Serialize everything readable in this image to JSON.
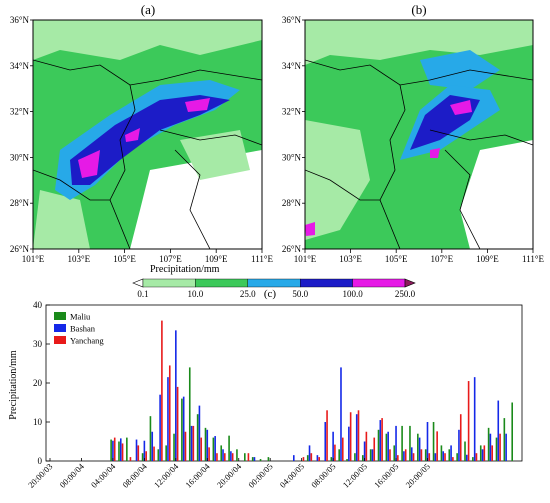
{
  "panels": {
    "a": {
      "label": "(a)"
    },
    "b": {
      "label": "(b)"
    },
    "c": {
      "label": "(c)"
    },
    "lat_ticks": [
      "36°N",
      "34°N",
      "32°N",
      "30°N",
      "28°N",
      "26°N"
    ],
    "lon_ticks": [
      "101°E",
      "103°E",
      "105°E",
      "107°E",
      "109°E",
      "111°E"
    ]
  },
  "colorbar": {
    "title": "Precipitation/mm",
    "levels": [
      "0.1",
      "10.0",
      "25.0",
      "50.0",
      "100.0",
      "250.0"
    ],
    "colors": [
      "#ffffff",
      "#a6eaa6",
      "#3cc95a",
      "#27a9e8",
      "#1c1cc7",
      "#e61ae6",
      "#8b1a5c"
    ]
  },
  "chart_data": {
    "type": "bar",
    "ylabel": "Precipitation/mm",
    "xlabel": "",
    "ylim": [
      0,
      40
    ],
    "yticks": [
      0,
      10,
      20,
      30,
      40
    ],
    "grid": false,
    "legend_position": "top-left",
    "x_tick_labels": [
      "20:00/03",
      "00:00/04",
      "04:00/04",
      "08:00/04",
      "12:00/04",
      "16:00/04",
      "20:00/04",
      "00:00/05",
      "04:00/05",
      "08:00/05",
      "12:00/05",
      "16:00/05",
      "20:00/05"
    ],
    "x_tick_hours": [
      0,
      4,
      8,
      12,
      16,
      20,
      24,
      28,
      32,
      36,
      40,
      44,
      48
    ],
    "series": [
      {
        "name": "Maliu",
        "color": "#1a8a1a",
        "values": [
          0,
          0,
          0,
          0,
          0,
          0,
          0,
          0,
          0,
          0,
          0,
          0,
          0,
          0,
          0,
          0,
          0,
          0,
          0,
          0,
          0,
          0,
          0,
          0,
          0,
          0,
          0,
          5.5,
          5,
          6,
          0,
          0,
          0,
          0,
          2,
          11.5,
          0,
          0,
          0,
          0,
          0,
          0,
          0,
          0,
          0,
          0,
          3,
          4,
          0,
          0,
          0,
          0,
          0,
          0,
          0,
          0,
          0,
          0,
          0,
          0,
          0,
          0,
          0,
          0,
          0,
          0,
          0,
          0,
          0,
          0,
          0,
          0,
          0,
          0,
          0,
          0,
          0,
          0,
          0,
          0,
          0,
          0,
          0,
          0,
          0,
          0,
          0,
          0,
          0,
          0,
          0,
          0,
          0,
          0,
          0,
          0,
          5,
          2,
          2,
          9,
          11,
          0,
          0,
          0,
          0,
          0,
          0,
          0,
          0,
          0,
          0,
          0,
          0,
          0,
          0,
          0,
          0,
          0,
          0,
          0,
          0,
          0,
          0,
          0,
          0,
          0,
          0,
          0,
          0,
          0,
          0,
          0,
          0,
          0,
          0,
          0,
          0,
          0,
          0,
          0,
          0,
          0,
          0,
          0,
          0,
          0,
          0,
          0,
          0,
          0,
          0,
          0,
          0,
          0,
          0,
          0,
          0,
          0,
          0,
          0,
          0,
          0,
          0,
          0,
          0,
          0,
          0,
          0,
          0,
          0,
          0,
          0,
          0,
          0,
          0,
          0,
          0,
          0,
          0,
          0,
          0,
          0,
          0,
          0,
          0,
          0,
          0,
          0,
          0,
          0,
          0,
          0,
          0,
          0,
          0,
          0,
          0,
          0,
          0,
          0,
          0,
          0,
          0,
          0,
          0,
          0
        ]
      }
    ],
    "bar_series": [
      {
        "name": "Maliu",
        "color": "#1a8a1a",
        "values": [
          0,
          0,
          0,
          0,
          0,
          0,
          0,
          0,
          5.5,
          5,
          6,
          0,
          2,
          11.5,
          3,
          4,
          7,
          16,
          24,
          12,
          8.5,
          6,
          4,
          6.5,
          3,
          2,
          1,
          0.5,
          1,
          0,
          0,
          0,
          0,
          1.5,
          0,
          0,
          1,
          3,
          0.5,
          2,
          1.5,
          3,
          8,
          7,
          4,
          9,
          9,
          7,
          3,
          10,
          4,
          3,
          2,
          5,
          1,
          4,
          8.5,
          6,
          11,
          15
        ]
      },
      {
        "name": "Bashan",
        "color": "#1428e8",
        "values": [
          0,
          0,
          0,
          0,
          0,
          0,
          0,
          0,
          5.2,
          5.8,
          0,
          5.5,
          5.2,
          7.5,
          17,
          21.5,
          33.5,
          16.5,
          9,
          14.2,
          8,
          6.4,
          3,
          2.5,
          0,
          0,
          1,
          0,
          0,
          0,
          0,
          1.5,
          0,
          4,
          1.5,
          10,
          7.5,
          24,
          8.8,
          12,
          5,
          3,
          10.5,
          7.5,
          9,
          2.5,
          3.5,
          6,
          10,
          2,
          2.5,
          4,
          8,
          1.6,
          21.5,
          3,
          7,
          15.5,
          7,
          0
        ]
      },
      {
        "name": "Yanchang",
        "color": "#e81a1a",
        "values": [
          0,
          0,
          0,
          0,
          0,
          0,
          0,
          0,
          6,
          4.5,
          1,
          4,
          2.5,
          3.7,
          36,
          24.5,
          19,
          7.5,
          9,
          6,
          3.5,
          2,
          2,
          2,
          0,
          2,
          0,
          0,
          0,
          0,
          0,
          0,
          1,
          2,
          1,
          13,
          4.2,
          6,
          12.5,
          13,
          7.5,
          6,
          11,
          3,
          1.5,
          3,
          2,
          3,
          2,
          7.6,
          2,
          1,
          12,
          20.5,
          2,
          4,
          4,
          7,
          0,
          0
        ]
      }
    ],
    "bar_hours": [
      0,
      1,
      2,
      3,
      4,
      5,
      6,
      7,
      8,
      9,
      10,
      11,
      12,
      13,
      14,
      15,
      16,
      17,
      18,
      19,
      20,
      21,
      22,
      23,
      24,
      25,
      26,
      27,
      28,
      29,
      30,
      31,
      32,
      33,
      34,
      35,
      36,
      37,
      38,
      39,
      40,
      41,
      42,
      43,
      44,
      45,
      46,
      47,
      48,
      49,
      50,
      51,
      52,
      53,
      54,
      55,
      56,
      57,
      58,
      59
    ]
  }
}
